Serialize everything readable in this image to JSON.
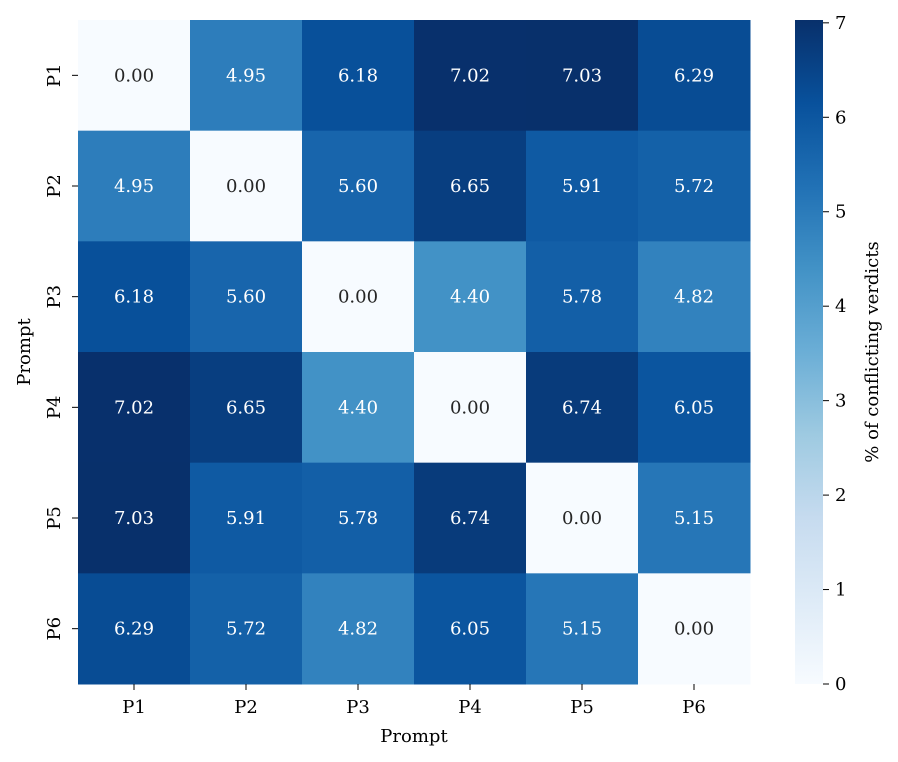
{
  "chart_data": {
    "type": "heatmap",
    "title": "",
    "xlabel": "Prompt",
    "ylabel": "Prompt",
    "x_categories": [
      "P1",
      "P2",
      "P3",
      "P4",
      "P5",
      "P6"
    ],
    "y_categories": [
      "P1",
      "P2",
      "P3",
      "P4",
      "P5",
      "P6"
    ],
    "values": [
      [
        0.0,
        4.95,
        6.18,
        7.02,
        7.03,
        6.29
      ],
      [
        4.95,
        0.0,
        5.6,
        6.65,
        5.91,
        5.72
      ],
      [
        6.18,
        5.6,
        0.0,
        4.4,
        5.78,
        4.82
      ],
      [
        7.02,
        6.65,
        4.4,
        0.0,
        6.74,
        6.05
      ],
      [
        7.03,
        5.91,
        5.78,
        6.74,
        0.0,
        5.15
      ],
      [
        6.29,
        5.72,
        4.82,
        6.05,
        5.15,
        0.0
      ]
    ],
    "value_format_decimals": 2,
    "colorbar": {
      "label": "% of conflicting verdicts",
      "min": 0,
      "max": 7.03,
      "ticks": [
        0,
        1,
        2,
        3,
        4,
        5,
        6,
        7
      ],
      "colormap": "Blues",
      "colormap_stops": [
        "#f7fbff",
        "#deebf7",
        "#c6dbef",
        "#9ecae1",
        "#6baed6",
        "#4292c6",
        "#2171b5",
        "#08519c",
        "#08306b"
      ]
    },
    "grid": false
  }
}
